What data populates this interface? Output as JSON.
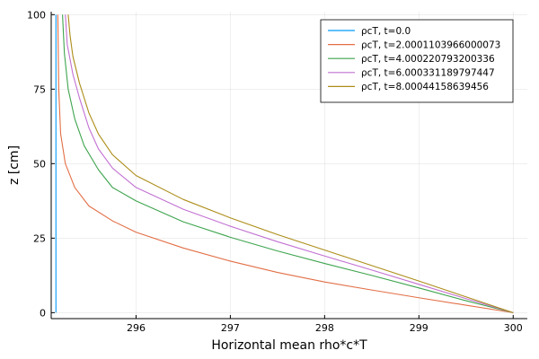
{
  "chart_data": {
    "type": "line",
    "title": "",
    "xlabel": "Horizontal mean rho*c*T",
    "ylabel": "z [cm]",
    "xlim": [
      295.1,
      300.15
    ],
    "ylim": [
      -2,
      101
    ],
    "xticks": [
      296,
      297,
      298,
      299,
      300
    ],
    "yticks": [
      0,
      25,
      50,
      75,
      100
    ],
    "grid": true,
    "legend_position": "top-right",
    "series": [
      {
        "name": "ρcT, t=0.0",
        "color": "#009AFA",
        "points": [
          [
            295.15,
            0
          ],
          [
            295.15,
            100
          ]
        ]
      },
      {
        "name": "ρcT, t=2.0001103966000073",
        "color": "#E26F46",
        "points": [
          [
            300,
            0
          ],
          [
            299.5,
            2.5
          ],
          [
            299,
            5
          ],
          [
            298.5,
            7.6
          ],
          [
            298,
            10.3
          ],
          [
            297.5,
            13.5
          ],
          [
            297,
            17.3
          ],
          [
            296.5,
            21.7
          ],
          [
            296,
            27
          ],
          [
            295.75,
            30.8
          ],
          [
            295.5,
            35.8
          ],
          [
            295.35,
            42
          ],
          [
            295.25,
            50
          ],
          [
            295.2,
            60
          ],
          [
            295.18,
            75
          ],
          [
            295.17,
            100
          ]
        ]
      },
      {
        "name": "ρcT, t=4.000220793200336",
        "color": "#3EA44E",
        "points": [
          [
            300,
            0
          ],
          [
            299.5,
            4
          ],
          [
            299,
            8.3
          ],
          [
            298.5,
            12.5
          ],
          [
            298,
            16.5
          ],
          [
            297.5,
            20.7
          ],
          [
            297,
            25.3
          ],
          [
            296.5,
            30.5
          ],
          [
            296,
            37.5
          ],
          [
            295.75,
            42
          ],
          [
            295.6,
            48
          ],
          [
            295.45,
            56
          ],
          [
            295.35,
            65
          ],
          [
            295.28,
            75
          ],
          [
            295.24,
            87
          ],
          [
            295.22,
            100
          ]
        ]
      },
      {
        "name": "ρcT, t=6.000331189797447",
        "color": "#C271D2",
        "points": [
          [
            300,
            0
          ],
          [
            299.5,
            4.7
          ],
          [
            299,
            9.5
          ],
          [
            298.5,
            14.3
          ],
          [
            298,
            19
          ],
          [
            297.5,
            23.8
          ],
          [
            297,
            29
          ],
          [
            296.5,
            34.7
          ],
          [
            296,
            42
          ],
          [
            295.75,
            48.5
          ],
          [
            295.6,
            55
          ],
          [
            295.5,
            62
          ],
          [
            295.4,
            72
          ],
          [
            295.33,
            80
          ],
          [
            295.27,
            90
          ],
          [
            295.25,
            100
          ]
        ]
      },
      {
        "name": "ρcT, t=8.00044158639456",
        "color": "#AC8D18",
        "points": [
          [
            300,
            0
          ],
          [
            299.5,
            5.3
          ],
          [
            299,
            10.6
          ],
          [
            298.5,
            15.8
          ],
          [
            298,
            21
          ],
          [
            297.5,
            26.2
          ],
          [
            297,
            31.8
          ],
          [
            296.5,
            38
          ],
          [
            296,
            46
          ],
          [
            295.75,
            53
          ],
          [
            295.6,
            60
          ],
          [
            295.5,
            67
          ],
          [
            295.4,
            77
          ],
          [
            295.33,
            86
          ],
          [
            295.3,
            93
          ],
          [
            295.28,
            100
          ]
        ]
      }
    ]
  }
}
